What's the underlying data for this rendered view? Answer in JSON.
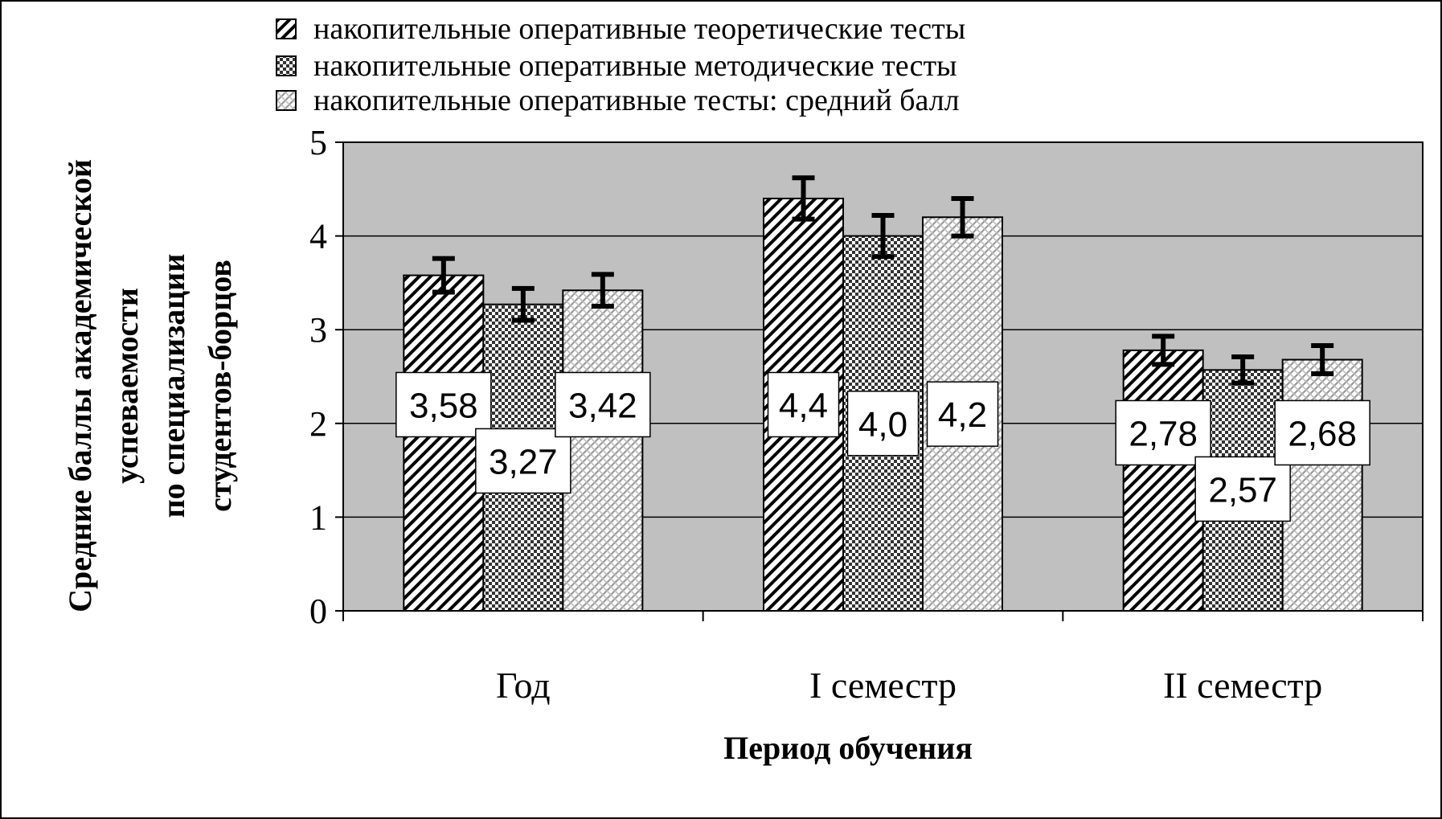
{
  "chart_data": {
    "type": "bar",
    "categories": [
      "Год",
      "I семестр",
      "II семестр"
    ],
    "series": [
      {
        "name": "накопительные оперативные теоретические тесты",
        "values": [
          3.58,
          4.4,
          2.78
        ],
        "labels": [
          "3,58",
          "4,4",
          "2,78"
        ],
        "errors": [
          0.18,
          0.22,
          0.15
        ],
        "pattern": "diagonal"
      },
      {
        "name": "накопительные оперативные методические тесты",
        "values": [
          3.27,
          4.0,
          2.57
        ],
        "labels": [
          "3,27",
          "4,0",
          "2,57"
        ],
        "errors": [
          0.17,
          0.22,
          0.14
        ],
        "pattern": "checker"
      },
      {
        "name": "накопительные оперативные тесты: средний балл",
        "values": [
          3.42,
          4.2,
          2.68
        ],
        "labels": [
          "3,42",
          "4,2",
          "2,68"
        ],
        "errors": [
          0.17,
          0.2,
          0.15
        ],
        "pattern": "lattice"
      }
    ],
    "ylabel": [
      "Средние баллы академической",
      "успеваемости",
      "по специализации",
      "студентов-борцов"
    ],
    "xlabel": "Период обучения",
    "ylim": [
      0,
      5
    ],
    "yticks": [
      "0",
      "1",
      "2",
      "3",
      "4",
      "5"
    ],
    "grid": true,
    "legend_position": "top",
    "colors": {
      "plot_background": "#c0c0c0",
      "bar_fill": "#ffffff",
      "hatch": "#000000"
    }
  }
}
